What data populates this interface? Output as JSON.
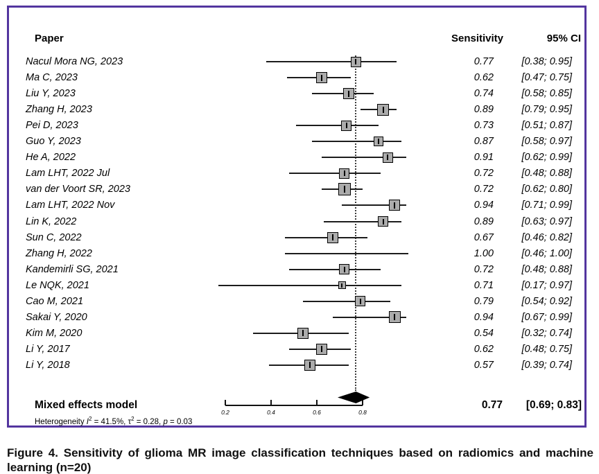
{
  "header": {
    "paper": "Paper",
    "sensitivity": "Sensitivity",
    "ci": "95% CI"
  },
  "colors": {
    "panel_border": "#53359f",
    "square_fill": "#ababab",
    "line": "#1c1c1c",
    "diamond": "#000000"
  },
  "chart_data": {
    "type": "forest",
    "title": "",
    "xlabel": "",
    "columns": [
      "Paper",
      "Sensitivity",
      "95% CI"
    ],
    "axis": {
      "range": [
        0.2,
        1.0
      ],
      "ticks": [
        0.2,
        0.4,
        0.6,
        0.8
      ],
      "tick_labels": [
        "0.2",
        "0.4",
        "0.6",
        "0.8"
      ]
    },
    "ref_line": 0.77,
    "studies": [
      {
        "label": "Nacul Mora NG, 2023",
        "sens": 0.77,
        "lo": 0.38,
        "hi": 0.95,
        "sq": 15
      },
      {
        "label": "Ma C, 2023",
        "sens": 0.62,
        "lo": 0.47,
        "hi": 0.75,
        "sq": 16
      },
      {
        "label": "Liu Y, 2023",
        "sens": 0.74,
        "lo": 0.58,
        "hi": 0.85,
        "sq": 16
      },
      {
        "label": "Zhang H, 2023",
        "sens": 0.89,
        "lo": 0.79,
        "hi": 0.95,
        "sq": 17
      },
      {
        "label": "Pei D, 2023",
        "sens": 0.73,
        "lo": 0.51,
        "hi": 0.87,
        "sq": 15
      },
      {
        "label": "Guo Y, 2023",
        "sens": 0.87,
        "lo": 0.58,
        "hi": 0.97,
        "sq": 14
      },
      {
        "label": "He A, 2022",
        "sens": 0.91,
        "lo": 0.62,
        "hi": 0.99,
        "sq": 15
      },
      {
        "label": "Lam LHT, 2022 Jul",
        "sens": 0.72,
        "lo": 0.48,
        "hi": 0.88,
        "sq": 15
      },
      {
        "label": "van der Voort SR, 2023",
        "sens": 0.72,
        "lo": 0.62,
        "hi": 0.8,
        "sq": 18
      },
      {
        "label": "Lam LHT, 2022 Nov",
        "sens": 0.94,
        "lo": 0.71,
        "hi": 0.99,
        "sq": 16
      },
      {
        "label": "Lin K, 2022",
        "sens": 0.89,
        "lo": 0.63,
        "hi": 0.97,
        "sq": 15
      },
      {
        "label": "Sun C, 2022",
        "sens": 0.67,
        "lo": 0.46,
        "hi": 0.82,
        "sq": 16
      },
      {
        "label": "Zhang H, 2022",
        "sens": 1.0,
        "lo": 0.46,
        "hi": 1.0,
        "sq": 0
      },
      {
        "label": "Kandemirli SG, 2021",
        "sens": 0.72,
        "lo": 0.48,
        "hi": 0.88,
        "sq": 15
      },
      {
        "label": "Le NQK, 2021",
        "sens": 0.71,
        "lo": 0.17,
        "hi": 0.97,
        "sq": 11
      },
      {
        "label": "Cao M, 2021",
        "sens": 0.79,
        "lo": 0.54,
        "hi": 0.92,
        "sq": 15
      },
      {
        "label": "Sakai Y, 2020",
        "sens": 0.94,
        "lo": 0.67,
        "hi": 0.99,
        "sq": 17
      },
      {
        "label": "Kim M, 2020",
        "sens": 0.54,
        "lo": 0.32,
        "hi": 0.74,
        "sq": 16
      },
      {
        "label": "Li Y, 2017",
        "sens": 0.62,
        "lo": 0.48,
        "hi": 0.75,
        "sq": 16
      },
      {
        "label": "Li Y, 2018",
        "sens": 0.57,
        "lo": 0.39,
        "hi": 0.74,
        "sq": 16
      }
    ],
    "summary": {
      "label": "Mixed effects model",
      "sens": 0.77,
      "lo": 0.69,
      "hi": 0.83,
      "sens_text": "0.77",
      "ci_text": "[0.69; 0.83]"
    },
    "heterogeneity": {
      "prefix": "Heterogeneity ",
      "i_label": "I",
      "i_sup": "2",
      "i_val": " = 41.5%, ",
      "tau_label": "τ",
      "tau_sup": "2",
      "tau_val": " = 0.28, ",
      "p_label": "p",
      "p_val": " = 0.03"
    }
  },
  "caption": "Figure 4. Sensitivity of glioma MR image classification techniques based on radiomics and machine learning (n=20)"
}
